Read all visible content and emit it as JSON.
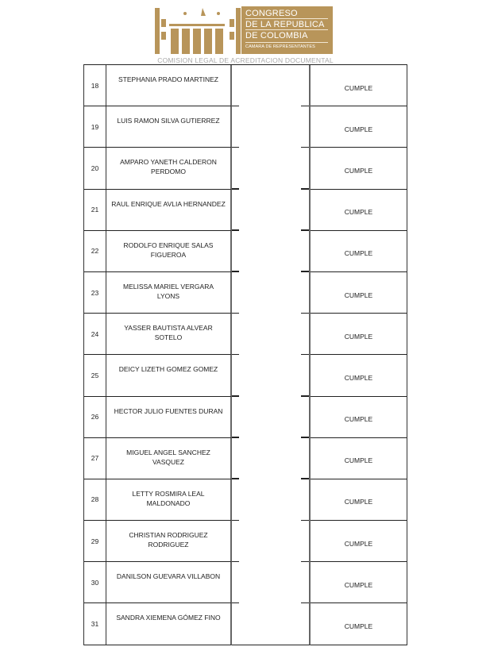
{
  "header": {
    "logo_lines": [
      "CONGRESO",
      "DE LA REPUBLICA",
      "DE COLOMBIA"
    ],
    "logo_subline": "CAMARA DE REPRESENTANTES",
    "subtitle": "COMISION LEGAL DE ACREDITACION DOCUMENTAL",
    "brand_color": "#b8955a"
  },
  "rows": [
    {
      "num": "18",
      "name": "STEPHANIA PRADO MARTINEZ",
      "result": "CUMPLE"
    },
    {
      "num": "19",
      "name": "LUIS RAMON SILVA GUTIERREZ",
      "result": "CUMPLE"
    },
    {
      "num": "20",
      "name": "AMPARO YANETH CALDERON PERDOMO",
      "result": "CUMPLE"
    },
    {
      "num": "21",
      "name": "RAUL ENRIQUE AVLIA HERNANDEZ",
      "result": "CUMPLE"
    },
    {
      "num": "22",
      "name": "RODOLFO ENRIQUE SALAS FIGUEROA",
      "result": "CUMPLE"
    },
    {
      "num": "23",
      "name": "MELISSA MARIEL VERGARA LYONS",
      "result": "CUMPLE"
    },
    {
      "num": "24",
      "name": "YASSER BAUTISTA ALVEAR SOTELO",
      "result": "CUMPLE"
    },
    {
      "num": "25",
      "name": "DEICY LIZETH GOMEZ GOMEZ",
      "result": "CUMPLE"
    },
    {
      "num": "26",
      "name": "HECTOR JULIO FUENTES DURAN",
      "result": "CUMPLE"
    },
    {
      "num": "27",
      "name": "MIGUEL ANGEL SANCHEZ VASQUEZ",
      "result": "CUMPLE"
    },
    {
      "num": "28",
      "name": "LETTY ROSMIRA LEAL MALDONADO",
      "result": "CUMPLE"
    },
    {
      "num": "29",
      "name": "CHRISTIAN RODRIGUEZ RODRIGUEZ",
      "result": "CUMPLE"
    },
    {
      "num": "30",
      "name": "DANILSON GUEVARA VILLABON",
      "result": "CUMPLE"
    },
    {
      "num": "31",
      "name": "SANDRA XIEMENA GÓMEZ FINO",
      "result": "CUMPLE"
    }
  ]
}
